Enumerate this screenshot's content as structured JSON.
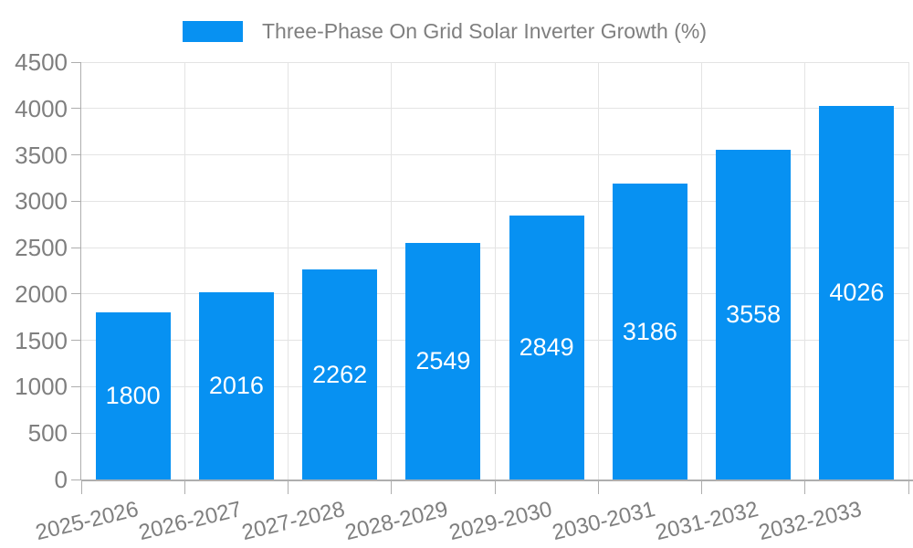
{
  "legend": {
    "label": "Three-Phase On Grid Solar Inverter Growth (%)"
  },
  "colors": {
    "bar": "#0791f2",
    "grid": "#e4e4e4",
    "axis": "#aeaeae",
    "text": "#7f7f7f",
    "value_label": "#ffffff",
    "background": "#ffffff"
  },
  "chart_data": {
    "type": "bar",
    "title": "Three-Phase On Grid Solar Inverter Growth (%)",
    "categories": [
      "2025-2026",
      "2026-2027",
      "2027-2028",
      "2028-2029",
      "2029-2030",
      "2030-2031",
      "2031-2032",
      "2032-2033"
    ],
    "values": [
      1800,
      2016,
      2262,
      2549,
      2849,
      3186,
      3558,
      4026
    ],
    "series_name": "Three-Phase On Grid Solar Inverter Growth (%)",
    "xlabel": "",
    "ylabel": "",
    "ylim": [
      0,
      4500
    ],
    "ytick_step": 500,
    "grid": true,
    "legend_position": "top-center",
    "value_label_position": "inside-center",
    "x_label_rotation_deg": -13.5
  }
}
